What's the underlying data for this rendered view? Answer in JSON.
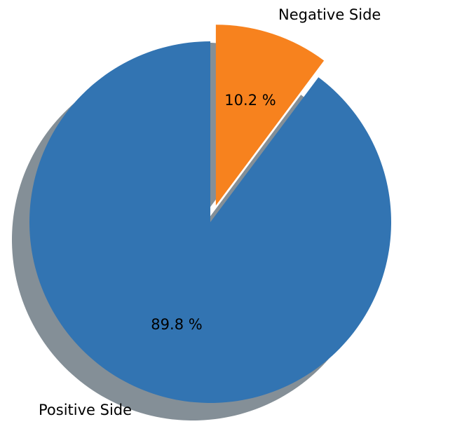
{
  "chart_data": {
    "type": "pie",
    "title": "",
    "slices": [
      {
        "label": "Negative Side",
        "value": 10.2,
        "percent_label": "10.2 %",
        "color": "#f7821e",
        "exploded": true
      },
      {
        "label": "Positive Side",
        "value": 89.8,
        "percent_label": "89.8 %",
        "color": "#3274b2",
        "exploded": false
      }
    ],
    "shadow": true,
    "shadow_color": "#848f97",
    "start_angle_deg": 90,
    "direction": "clockwise"
  }
}
